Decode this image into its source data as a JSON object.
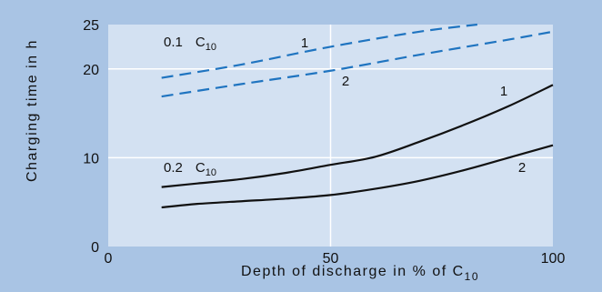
{
  "chart_data": {
    "type": "line",
    "xlabel": {
      "text": "Depth of discharge in % of C",
      "subscript": "10"
    },
    "ylabel": "Charging time in h",
    "xlim": [
      0,
      100
    ],
    "ylim": [
      0,
      25
    ],
    "x_ticks": [
      0,
      50,
      100
    ],
    "y_ticks": [
      0,
      10,
      20,
      25
    ],
    "grid": true,
    "colors": {
      "background": "#a9c4e4",
      "plot_area": "#d3e1f2",
      "grid": "#ffffff",
      "dashed": "#1f74c0",
      "solid": "#111111"
    },
    "groups": [
      {
        "label": "0.1",
        "unit": "C",
        "unit_subscript": "10",
        "style": "dashed"
      },
      {
        "label": "0.2",
        "unit": "C",
        "unit_subscript": "10",
        "style": "solid"
      }
    ],
    "series": [
      {
        "name": "1",
        "group": "0.1",
        "style": "dashed",
        "color": "#1f74c0",
        "x": [
          12,
          30,
          50,
          70,
          83
        ],
        "y": [
          19,
          20.5,
          22.5,
          24.2,
          25
        ]
      },
      {
        "name": "2",
        "group": "0.1",
        "style": "dashed",
        "color": "#1f74c0",
        "x": [
          12,
          30,
          50,
          70,
          90,
          100
        ],
        "y": [
          16.9,
          18.3,
          19.8,
          21.6,
          23.3,
          24.2
        ]
      },
      {
        "name": "1",
        "group": "0.2",
        "style": "solid",
        "color": "#111111",
        "x": [
          12,
          20,
          30,
          40,
          50,
          60,
          70,
          80,
          90,
          100
        ],
        "y": [
          6.7,
          7.1,
          7.6,
          8.3,
          9.2,
          10.1,
          11.8,
          13.7,
          15.8,
          18.2
        ]
      },
      {
        "name": "2",
        "group": "0.2",
        "style": "solid",
        "color": "#111111",
        "x": [
          12,
          20,
          30,
          40,
          50,
          60,
          70,
          80,
          90,
          100
        ],
        "y": [
          4.4,
          4.8,
          5.1,
          5.4,
          5.8,
          6.5,
          7.4,
          8.6,
          10,
          11.4
        ]
      }
    ]
  }
}
